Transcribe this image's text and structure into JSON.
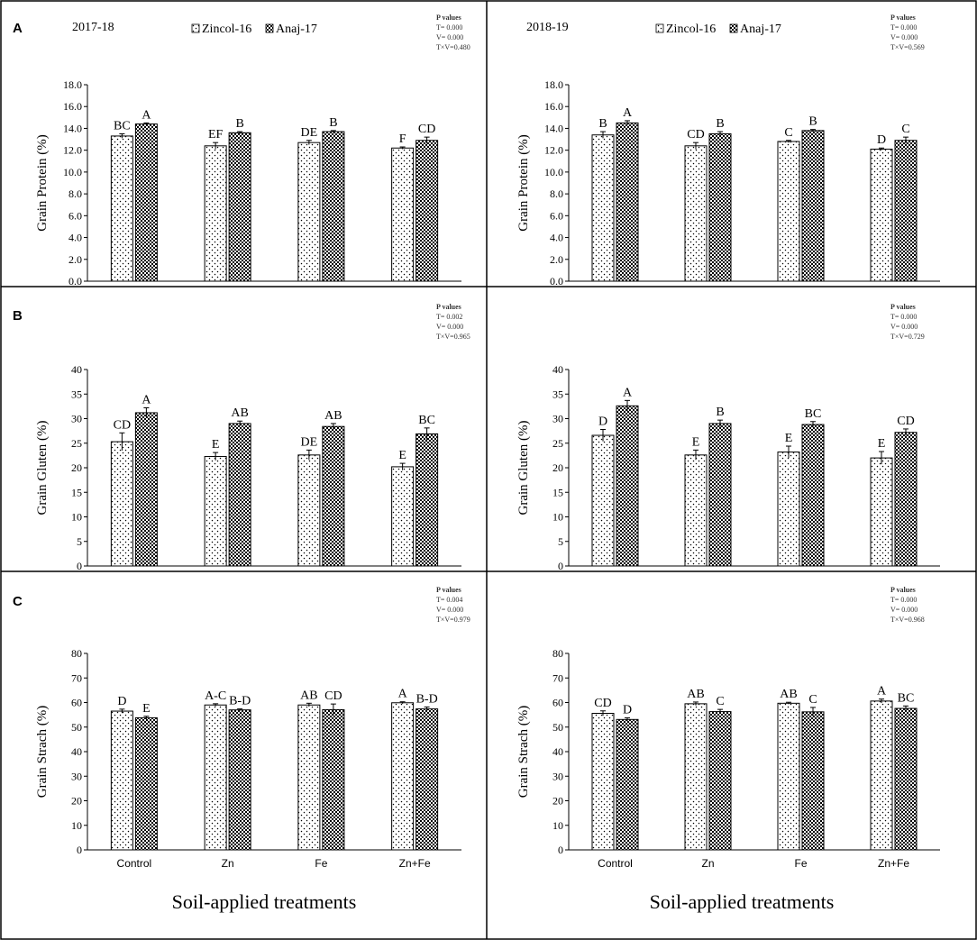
{
  "figure": {
    "x_axis_label": "Soil-applied treatments",
    "legend": [
      "Zincol-16",
      "Anaj-17"
    ],
    "p_values_title": "P values",
    "colors": {
      "frame": "#000000",
      "bar_fill": "#ffffff",
      "dots": "#000000"
    }
  },
  "chart_data": [
    {
      "id": "A-2017-18",
      "panel_letter": "A",
      "year": "2017-18",
      "type": "bar",
      "ylabel": "Grain Protein (%)",
      "ylim": [
        0,
        18
      ],
      "ystep": 2,
      "ydecimals": 1,
      "show_legend": true,
      "show_xlabels": false,
      "categories": [
        "Control",
        "Zn",
        "Fe",
        "Zn+Fe"
      ],
      "series": [
        {
          "name": "Zincol-16",
          "values": [
            13.3,
            12.4,
            12.7,
            12.2
          ],
          "errors": [
            0.2,
            0.3,
            0.2,
            0.1
          ],
          "letters": [
            "BC",
            "EF",
            "DE",
            "F"
          ]
        },
        {
          "name": "Anaj-17",
          "values": [
            14.4,
            13.6,
            13.7,
            12.9
          ],
          "errors": [
            0.1,
            0.1,
            0.1,
            0.3
          ],
          "letters": [
            "A",
            "B",
            "B",
            "CD"
          ]
        }
      ],
      "p_values": [
        "T= 0.000",
        "V= 0.000",
        "T×V=0.480"
      ]
    },
    {
      "id": "A-2018-19",
      "panel_letter": "",
      "year": "2018-19",
      "type": "bar",
      "ylabel": "Grain Protein (%)",
      "ylim": [
        0,
        18
      ],
      "ystep": 2,
      "ydecimals": 1,
      "show_legend": true,
      "show_xlabels": false,
      "categories": [
        "Control",
        "Zn",
        "Fe",
        "Zn+Fe"
      ],
      "series": [
        {
          "name": "Zincol-16",
          "values": [
            13.4,
            12.4,
            12.8,
            12.1
          ],
          "errors": [
            0.3,
            0.3,
            0.1,
            0.1
          ],
          "letters": [
            "B",
            "CD",
            "C",
            "D"
          ]
        },
        {
          "name": "Anaj-17",
          "values": [
            14.5,
            13.5,
            13.8,
            12.9
          ],
          "errors": [
            0.2,
            0.2,
            0.1,
            0.3
          ],
          "letters": [
            "A",
            "B",
            "B",
            "C"
          ]
        }
      ],
      "p_values": [
        "T= 0.000",
        "V= 0.000",
        "T×V=0.569"
      ]
    },
    {
      "id": "B-2017-18",
      "panel_letter": "B",
      "year": "",
      "type": "bar",
      "ylabel": "Grain Gluten (%)",
      "ylim": [
        0,
        40
      ],
      "ystep": 5,
      "ydecimals": 0,
      "show_legend": false,
      "show_xlabels": false,
      "categories": [
        "Control",
        "Zn",
        "Fe",
        "Zn+Fe"
      ],
      "series": [
        {
          "name": "Zincol-16",
          "values": [
            25.3,
            22.3,
            22.6,
            20.2
          ],
          "errors": [
            1.8,
            0.8,
            1.0,
            0.7
          ],
          "letters": [
            "CD",
            "E",
            "DE",
            "E"
          ]
        },
        {
          "name": "Anaj-17",
          "values": [
            31.2,
            29.0,
            28.4,
            26.9
          ],
          "errors": [
            1.0,
            0.5,
            0.6,
            1.2
          ],
          "letters": [
            "A",
            "AB",
            "AB",
            "BC"
          ]
        }
      ],
      "p_values": [
        "T= 0.002",
        "V= 0.000",
        "T×V=0.965"
      ]
    },
    {
      "id": "B-2018-19",
      "panel_letter": "",
      "year": "",
      "type": "bar",
      "ylabel": "Grain Gluten (%)",
      "ylim": [
        0,
        40
      ],
      "ystep": 5,
      "ydecimals": 0,
      "show_legend": false,
      "show_xlabels": false,
      "categories": [
        "Control",
        "Zn",
        "Fe",
        "Zn+Fe"
      ],
      "series": [
        {
          "name": "Zincol-16",
          "values": [
            26.6,
            22.6,
            23.2,
            22.0
          ],
          "errors": [
            1.2,
            1.0,
            1.2,
            1.3
          ],
          "letters": [
            "D",
            "E",
            "E",
            "E"
          ]
        },
        {
          "name": "Anaj-17",
          "values": [
            32.6,
            29.0,
            28.8,
            27.2
          ],
          "errors": [
            1.1,
            0.7,
            0.6,
            0.7
          ],
          "letters": [
            "A",
            "B",
            "BC",
            "CD"
          ]
        }
      ],
      "p_values": [
        "T= 0.000",
        "V= 0.000",
        "T×V=0.729"
      ]
    },
    {
      "id": "C-2017-18",
      "panel_letter": "C",
      "year": "",
      "type": "bar",
      "ylabel": "Grain Strach (%)",
      "ylim": [
        0,
        80
      ],
      "ystep": 10,
      "ydecimals": 0,
      "show_legend": false,
      "show_xlabels": true,
      "categories": [
        "Control",
        "Zn",
        "Fe",
        "Zn+Fe"
      ],
      "series": [
        {
          "name": "Zincol-16",
          "values": [
            56.5,
            59.0,
            59.0,
            59.9
          ],
          "errors": [
            0.8,
            0.5,
            0.7,
            0.4
          ],
          "letters": [
            "D",
            "A-C",
            "AB",
            "A"
          ]
        },
        {
          "name": "Anaj-17",
          "values": [
            53.8,
            57.0,
            57.1,
            57.4
          ],
          "errors": [
            0.6,
            0.4,
            2.3,
            0.8
          ],
          "letters": [
            "E",
            "B-D",
            "CD",
            "B-D"
          ]
        }
      ],
      "p_values": [
        "T= 0.004",
        "V= 0.000",
        "T×V=0.979"
      ]
    },
    {
      "id": "C-2018-19",
      "panel_letter": "",
      "year": "",
      "type": "bar",
      "ylabel": "Grain Strach (%)",
      "ylim": [
        0,
        80
      ],
      "ystep": 10,
      "ydecimals": 0,
      "show_legend": false,
      "show_xlabels": true,
      "categories": [
        "Control",
        "Zn",
        "Fe",
        "Zn+Fe"
      ],
      "series": [
        {
          "name": "Zincol-16",
          "values": [
            55.6,
            59.5,
            59.7,
            60.6
          ],
          "errors": [
            1.0,
            0.7,
            0.4,
            0.8
          ],
          "letters": [
            "CD",
            "AB",
            "AB",
            "A"
          ]
        },
        {
          "name": "Anaj-17",
          "values": [
            53.1,
            56.3,
            56.2,
            57.6
          ],
          "errors": [
            0.7,
            0.9,
            1.8,
            1.0
          ],
          "letters": [
            "D",
            "C",
            "C",
            "BC"
          ]
        }
      ],
      "p_values": [
        "T= 0.000",
        "V= 0.000",
        "T×V=0.968"
      ]
    }
  ]
}
